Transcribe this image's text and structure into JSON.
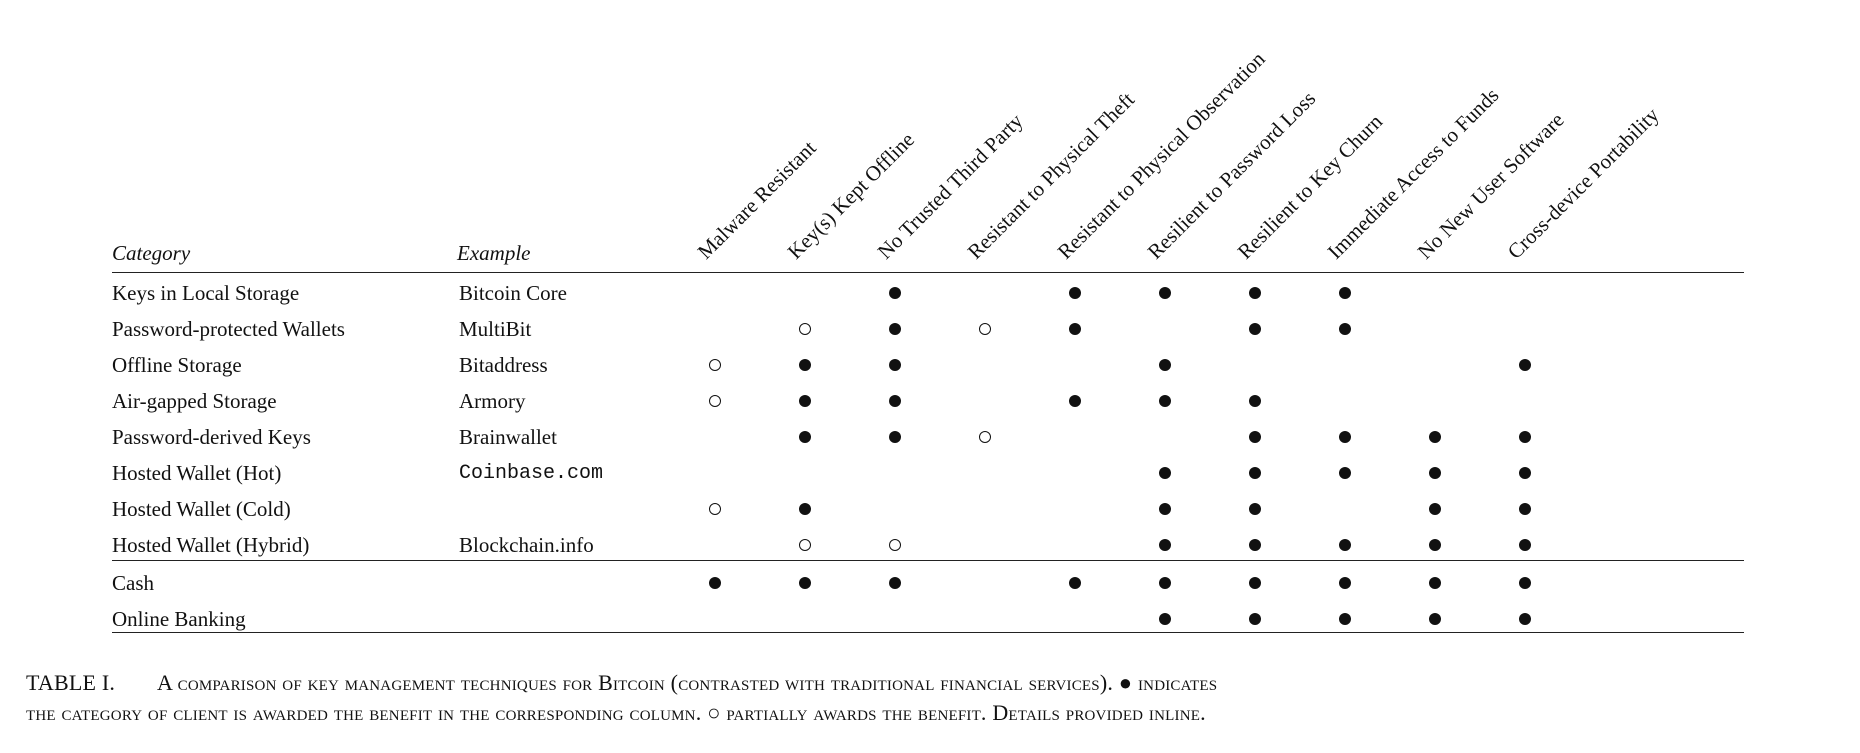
{
  "table": {
    "header": {
      "category": "Category",
      "example": "Example",
      "columns": [
        "Malware Resistant",
        "Key(s) Kept Offline",
        "No Trusted Third Party",
        "Resistant to Physical Theft",
        "Resistant to Physical Observation",
        "Resilient to Password Loss",
        "Resilient to Key Churn",
        "Immediate Access to Funds",
        "No New User Software",
        "Cross-device Portability"
      ]
    },
    "rows": [
      {
        "category": "Keys in Local Storage",
        "example": "Bitcoin Core",
        "mono": false,
        "marks": [
          "",
          "",
          "full",
          "",
          "full",
          "full",
          "full",
          "full",
          "",
          ""
        ]
      },
      {
        "category": "Password-protected Wallets",
        "example": "MultiBit",
        "mono": false,
        "marks": [
          "",
          "partial",
          "full",
          "partial",
          "full",
          "",
          "full",
          "full",
          "",
          ""
        ]
      },
      {
        "category": "Offline Storage",
        "example": "Bitaddress",
        "mono": false,
        "marks": [
          "partial",
          "full",
          "full",
          "",
          "",
          "full",
          "",
          "",
          "",
          "full"
        ]
      },
      {
        "category": "Air-gapped Storage",
        "example": "Armory",
        "mono": false,
        "marks": [
          "partial",
          "full",
          "full",
          "",
          "full",
          "full",
          "full",
          "",
          "",
          ""
        ]
      },
      {
        "category": "Password-derived Keys",
        "example": "Brainwallet",
        "mono": false,
        "marks": [
          "",
          "full",
          "full",
          "partial",
          "",
          "",
          "full",
          "full",
          "full",
          "full"
        ]
      },
      {
        "category": "Hosted Wallet (Hot)",
        "example": "Coinbase.com",
        "mono": true,
        "marks": [
          "",
          "",
          "",
          "",
          "",
          "full",
          "full",
          "full",
          "full",
          "full"
        ]
      },
      {
        "category": "Hosted Wallet (Cold)",
        "example": "",
        "mono": false,
        "marks": [
          "partial",
          "full",
          "",
          "",
          "",
          "full",
          "full",
          "",
          "full",
          "full"
        ]
      },
      {
        "category": "Hosted Wallet (Hybrid)",
        "example": "Blockchain.info",
        "mono": false,
        "marks": [
          "",
          "partial",
          "partial",
          "",
          "",
          "full",
          "full",
          "full",
          "full",
          "full"
        ]
      },
      {
        "category": "Cash",
        "example": "",
        "mono": false,
        "marks": [
          "full",
          "full",
          "full",
          "",
          "full",
          "full",
          "full",
          "full",
          "full",
          "full"
        ]
      },
      {
        "category": "Online Banking",
        "example": "",
        "mono": false,
        "marks": [
          "",
          "",
          "",
          "",
          "",
          "full",
          "full",
          "full",
          "full",
          "full"
        ]
      }
    ]
  },
  "caption": {
    "tag": "TABLE I.",
    "text_line1": "A comparison of key management techniques for Bitcoin (contrasted with traditional financial services).",
    "full_symbol": "●",
    "text_line1b": "indicates",
    "text_line2": "the category of client is awarded the benefit in the corresponding column.",
    "partial_symbol": "○",
    "text_line2b": "partially awards the benefit. Details provided inline."
  }
}
